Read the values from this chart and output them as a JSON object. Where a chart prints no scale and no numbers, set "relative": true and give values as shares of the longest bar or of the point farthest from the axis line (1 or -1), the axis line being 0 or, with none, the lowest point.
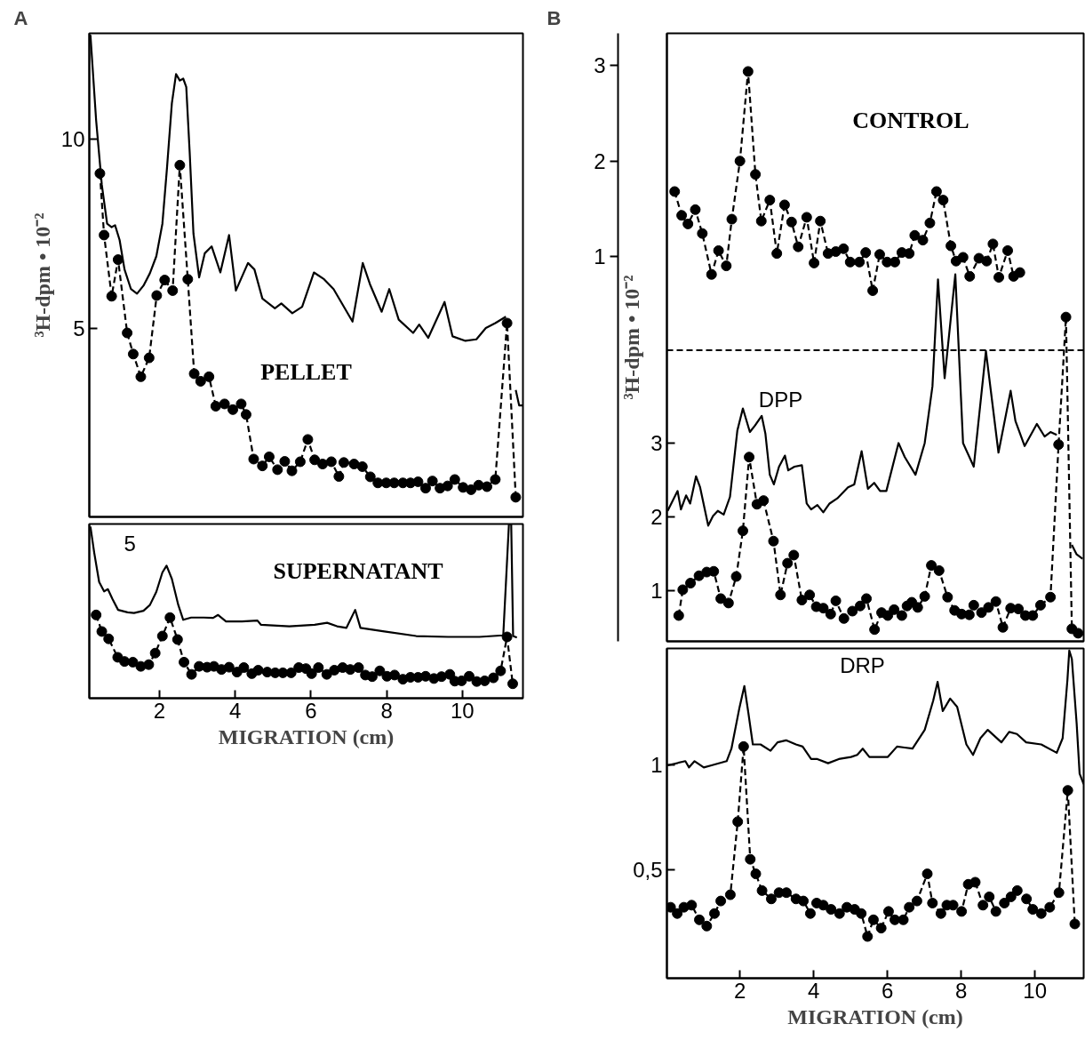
{
  "chart_data": [
    {
      "type": "line",
      "title": "A",
      "ylabel": "³H-dpm • 10⁻²",
      "xlim": [
        0.15,
        11.6
      ],
      "ylim": [
        0,
        12.8
      ],
      "yticks": [
        5,
        10
      ],
      "tick_labels": "y",
      "grid": false,
      "annotations": [
        "PELLET"
      ],
      "series": [
        {
          "line_style": "solid",
          "marker": "none",
          "color": "#000000",
          "x": [
            0.18,
            0.33,
            0.48,
            0.62,
            0.74,
            0.83,
            0.95,
            1.08,
            1.25,
            1.41,
            1.58,
            1.75,
            1.92,
            2.08,
            2.2,
            2.33,
            2.44,
            2.54,
            2.63,
            2.71,
            2.8,
            2.9,
            3.05,
            3.2,
            3.38,
            3.61,
            3.84,
            4.02,
            4.34,
            4.51,
            4.72,
            5.05,
            5.22,
            5.51,
            5.77,
            6.08,
            6.35,
            6.6,
            7.1,
            7.37,
            7.56,
            7.87,
            8.07,
            8.32,
            8.7,
            8.86,
            9.1,
            9.53,
            9.74,
            10.08,
            10.37,
            10.62,
            10.87,
            11.15,
            11.25,
            11.33,
            11.41,
            11.5,
            11.6
          ],
          "values": [
            12.76,
            10.5,
            8.79,
            7.76,
            7.67,
            7.72,
            7.33,
            6.55,
            6.03,
            5.91,
            6.12,
            6.45,
            6.9,
            7.76,
            9.22,
            10.95,
            11.72,
            11.55,
            11.6,
            11.38,
            9.66,
            7.5,
            6.34,
            6.98,
            7.16,
            6.47,
            7.46,
            5.99,
            6.72,
            6.55,
            5.78,
            5.52,
            5.65,
            5.39,
            5.56,
            6.47,
            6.29,
            6.03,
            5.17,
            6.72,
            6.16,
            5.43,
            6.03,
            5.22,
            4.87,
            5.09,
            4.74,
            5.69,
            4.78,
            4.66,
            4.7,
            5.0,
            5.13,
            5.3,
            null,
            null,
            3.36,
            2.95,
            2.95
          ]
        },
        {
          "line_style": "dashed",
          "marker": "circle",
          "color": "#000000",
          "x": [
            0.43,
            0.54,
            0.74,
            0.91,
            1.15,
            1.31,
            1.51,
            1.73,
            1.93,
            2.14,
            2.35,
            2.54,
            2.75,
            2.92,
            3.09,
            3.31,
            3.49,
            3.72,
            3.94,
            4.16,
            4.29,
            4.49,
            4.72,
            4.9,
            5.12,
            5.31,
            5.5,
            5.72,
            5.92,
            6.1,
            6.31,
            6.54,
            6.74,
            6.87,
            7.14,
            7.36,
            7.57,
            7.77,
            7.99,
            8.2,
            8.43,
            8.63,
            8.83,
            9.03,
            9.21,
            9.41,
            9.61,
            9.8,
            10.02,
            10.23,
            10.43,
            10.65,
            10.87,
            11.18,
            11.41
          ],
          "values": [
            9.09,
            7.46,
            5.84,
            6.81,
            4.87,
            4.31,
            3.71,
            4.21,
            5.86,
            6.27,
            5.99,
            9.31,
            6.29,
            3.79,
            3.59,
            3.71,
            2.93,
            2.99,
            2.84,
            2.99,
            2.71,
            1.53,
            1.35,
            1.59,
            1.25,
            1.47,
            1.22,
            1.46,
            2.05,
            1.51,
            1.4,
            1.46,
            1.07,
            1.44,
            1.4,
            1.33,
            1.06,
            0.9,
            0.9,
            0.9,
            0.9,
            0.9,
            0.93,
            0.76,
            0.95,
            0.76,
            0.82,
            0.99,
            0.78,
            0.72,
            0.84,
            0.8,
            0.99,
            5.13,
            0.52
          ]
        }
      ]
    },
    {
      "type": "line",
      "xlabel": "MIGRATION (cm)",
      "xlim": [
        0.15,
        11.6
      ],
      "xticks": [
        2,
        4,
        6,
        8,
        10
      ],
      "relative": true,
      "grid": false,
      "annotations": [
        "SUPERNATANT",
        "5"
      ],
      "series": [
        {
          "line_style": "solid",
          "marker": "none",
          "color": "#000000",
          "x": [
            0.18,
            0.28,
            0.41,
            0.54,
            0.64,
            0.76,
            0.91,
            1.16,
            1.33,
            1.58,
            1.75,
            1.92,
            2.08,
            2.19,
            2.33,
            2.5,
            2.63,
            2.84,
            3.17,
            3.42,
            3.55,
            3.76,
            4.18,
            4.59,
            4.68,
            5.43,
            6.1,
            6.43,
            6.69,
            6.94,
            7.17,
            7.31,
            7.94,
            8.78,
            9.62,
            10.45,
            11.08,
            11.23,
            11.29,
            11.34,
            11.44
          ],
          "values": [
            0.985,
            0.835,
            0.667,
            0.613,
            0.626,
            0.57,
            0.507,
            0.493,
            0.489,
            0.502,
            0.535,
            0.611,
            0.722,
            0.761,
            0.685,
            0.535,
            0.45,
            0.463,
            0.463,
            0.461,
            0.478,
            0.441,
            0.441,
            0.446,
            0.422,
            0.413,
            0.422,
            0.433,
            0.413,
            0.404,
            0.507,
            0.404,
            0.383,
            0.357,
            0.352,
            0.352,
            0.361,
            1,
            1,
            0.357,
            0.348
          ]
        },
        {
          "line_style": "dashed",
          "marker": "circle",
          "color": "#000000",
          "x": [
            0.33,
            0.48,
            0.66,
            0.9,
            1.08,
            1.3,
            1.51,
            1.72,
            1.89,
            2.08,
            2.28,
            2.48,
            2.65,
            2.85,
            3.05,
            3.26,
            3.44,
            3.64,
            3.84,
            4.05,
            4.23,
            4.44,
            4.61,
            4.85,
            5.06,
            5.26,
            5.48,
            5.68,
            5.87,
            6.02,
            6.2,
            6.42,
            6.62,
            6.84,
            7.04,
            7.26,
            7.44,
            7.62,
            7.82,
            8.01,
            8.21,
            8.43,
            8.63,
            8.83,
            9.03,
            9.25,
            9.45,
            9.67,
            9.8,
            9.98,
            10.18,
            10.38,
            10.59,
            10.82,
            11.01,
            11.18,
            11.33
          ],
          "values": [
            0.478,
            0.383,
            0.341,
            0.235,
            0.211,
            0.207,
            0.183,
            0.193,
            0.259,
            0.357,
            0.463,
            0.337,
            0.207,
            0.137,
            0.183,
            0.178,
            0.183,
            0.165,
            0.178,
            0.15,
            0.176,
            0.141,
            0.161,
            0.15,
            0.146,
            0.146,
            0.146,
            0.176,
            0.17,
            0.141,
            0.176,
            0.137,
            0.161,
            0.176,
            0.165,
            0.176,
            0.133,
            0.124,
            0.157,
            0.126,
            0.133,
            0.109,
            0.12,
            0.12,
            0.126,
            0.113,
            0.124,
            0.137,
            0.098,
            0.1,
            0.126,
            0.096,
            0.1,
            0.117,
            0.157,
            0.352,
            0.083
          ]
        }
      ]
    },
    {
      "type": "line",
      "title": "B",
      "ylabel": "³H-dpm • 10⁻²",
      "xlim": [
        0.02,
        11.32
      ],
      "ylim": [
        0.31,
        8.56
      ],
      "yticks": [
        1,
        2,
        3
      ],
      "y2lim": [
        -3.04,
        3.34
      ],
      "y2ticks": [
        1,
        2,
        3
      ],
      "tick_labels": "y",
      "grid": false,
      "ref_lines": [
        {
          "axis": "y",
          "value": 4.26,
          "line_style": "dashed",
          "color": "#000000"
        }
      ],
      "annotations": [
        "CONTROL",
        "DPP"
      ],
      "series": [
        {
          "axis": "y2",
          "line_style": "dashed",
          "marker": "circle",
          "color": "#000000",
          "x": [
            0.23,
            0.42,
            0.59,
            0.79,
            0.98,
            1.23,
            1.42,
            1.63,
            1.78,
            2.0,
            2.22,
            2.42,
            2.58,
            2.81,
            3.0,
            3.21,
            3.4,
            3.58,
            3.81,
            4.01,
            4.18,
            4.39,
            4.6,
            4.81,
            4.99,
            5.24,
            5.41,
            5.6,
            5.79,
            5.99,
            6.2,
            6.39,
            6.59,
            6.74,
            6.96,
            7.15,
            7.33,
            7.51,
            7.72,
            7.86,
            8.05,
            8.23,
            8.48,
            8.69,
            8.86,
            9.02,
            9.26,
            9.42,
            9.59
          ],
          "values": [
            1.68,
            1.43,
            1.34,
            1.49,
            1.24,
            0.81,
            1.06,
            0.9,
            1.39,
            2.0,
            2.94,
            1.86,
            1.37,
            1.59,
            1.03,
            1.54,
            1.36,
            1.1,
            1.41,
            0.93,
            1.37,
            1.03,
            1.05,
            1.08,
            0.94,
            0.94,
            1.04,
            0.64,
            1.02,
            0.94,
            0.94,
            1.04,
            1.03,
            1.22,
            1.17,
            1.35,
            1.68,
            1.59,
            1.11,
            0.95,
            0.99,
            0.79,
            0.98,
            0.95,
            1.13,
            0.78,
            1.06,
            0.79,
            0.83
          ]
        },
        {
          "line_style": "solid",
          "marker": "none",
          "color": "#000000",
          "x": [
            0.04,
            0.31,
            0.4,
            0.54,
            0.65,
            0.81,
            0.92,
            1.14,
            1.27,
            1.4,
            1.56,
            1.73,
            1.93,
            2.08,
            2.27,
            2.41,
            2.59,
            2.69,
            2.81,
            2.92,
            3.06,
            3.22,
            3.31,
            3.48,
            3.68,
            3.81,
            3.93,
            4.1,
            4.26,
            4.43,
            4.64,
            4.93,
            5.1,
            5.3,
            5.47,
            5.64,
            5.8,
            5.97,
            6.3,
            6.47,
            6.76,
            7.01,
            7.22,
            7.37,
            7.55,
            7.84,
            8.05,
            8.34,
            8.67,
            9.01,
            9.34,
            9.47,
            9.72,
            10.05,
            10.26,
            10.42,
            10.59,
            10.71,
            10.84,
            11.0,
            11.13,
            11.29
          ],
          "values": [
            2.08,
            2.35,
            2.1,
            2.29,
            2.18,
            2.55,
            2.4,
            1.88,
            2.01,
            2.08,
            2.03,
            2.27,
            3.17,
            3.47,
            3.15,
            3.24,
            3.37,
            3.13,
            2.57,
            2.44,
            2.68,
            2.83,
            2.63,
            2.68,
            2.7,
            2.18,
            2.1,
            2.16,
            2.06,
            2.18,
            2.25,
            2.4,
            2.44,
            2.89,
            2.38,
            2.46,
            2.35,
            2.35,
            3.0,
            2.81,
            2.57,
            3.0,
            3.77,
            5.22,
            3.88,
            5.29,
            3.0,
            2.68,
            4.25,
            2.87,
            3.71,
            3.3,
            2.96,
            3.26,
            3.09,
            3.15,
            3.11,
            null,
            null,
            1.62,
            1.49,
            1.43
          ]
        },
        {
          "line_style": "dashed",
          "marker": "circle",
          "color": "#000000",
          "x": [
            0.34,
            0.45,
            0.66,
            0.89,
            1.1,
            1.29,
            1.48,
            1.69,
            1.9,
            2.08,
            2.25,
            2.46,
            2.64,
            2.91,
            3.1,
            3.29,
            3.46,
            3.68,
            3.89,
            4.07,
            4.26,
            4.46,
            4.6,
            4.82,
            5.05,
            5.26,
            5.43,
            5.65,
            5.84,
            6.01,
            6.18,
            6.39,
            6.53,
            6.66,
            6.82,
            7.01,
            7.19,
            7.4,
            7.63,
            7.82,
            8.01,
            8.22,
            8.34,
            8.55,
            8.74,
            8.94,
            9.13,
            9.34,
            9.55,
            9.74,
            9.94,
            10.15,
            10.42,
            10.64,
            10.84,
            11.0,
            11.17
          ],
          "values": [
            0.66,
            1.01,
            1.1,
            1.2,
            1.25,
            1.26,
            0.89,
            0.83,
            1.19,
            1.81,
            2.81,
            2.17,
            2.22,
            1.67,
            0.94,
            1.37,
            1.48,
            0.87,
            0.94,
            0.78,
            0.76,
            0.68,
            0.86,
            0.62,
            0.72,
            0.79,
            0.89,
            0.47,
            0.7,
            0.66,
            0.74,
            0.66,
            0.79,
            0.84,
            0.77,
            0.92,
            1.34,
            1.27,
            0.91,
            0.73,
            0.68,
            0.67,
            0.8,
            0.7,
            0.77,
            0.85,
            0.5,
            0.76,
            0.75,
            0.66,
            0.66,
            0.8,
            0.91,
            2.98,
            4.71,
            0.48,
            0.42
          ]
        }
      ]
    },
    {
      "type": "line",
      "xlabel": "MIGRATION (cm)",
      "xlim": [
        0.02,
        11.32
      ],
      "xticks": [
        2,
        4,
        6,
        8,
        10
      ],
      "ylim": [
        -0.02,
        1.56
      ],
      "yticks": [
        {
          "value": 0.5,
          "label": "0,5"
        },
        1
      ],
      "grid": false,
      "annotations": [
        "DRP"
      ],
      "series": [
        {
          "line_style": "solid",
          "marker": "none",
          "color": "#000000",
          "x": [
            0.04,
            0.52,
            0.62,
            0.77,
            1.02,
            1.23,
            1.64,
            1.77,
            1.98,
            2.12,
            2.23,
            2.35,
            2.56,
            2.83,
            3.02,
            3.25,
            3.52,
            3.7,
            3.93,
            4.1,
            4.39,
            4.68,
            5.01,
            5.18,
            5.33,
            5.51,
            6.01,
            6.26,
            6.68,
            7.01,
            7.24,
            7.36,
            7.5,
            7.7,
            7.89,
            8.14,
            8.32,
            8.52,
            8.72,
            9.09,
            9.3,
            9.51,
            9.76,
            10.17,
            10.59,
            10.75,
            10.88,
            10.93,
            11.0,
            11.13,
            11.21,
            11.32
          ],
          "values": [
            1.0,
            1.02,
            0.99,
            1.02,
            0.99,
            1.0,
            1.02,
            1.08,
            1.27,
            1.38,
            1.25,
            1.1,
            1.1,
            1.07,
            1.11,
            1.12,
            1.1,
            1.09,
            1.03,
            1.03,
            1.01,
            1.03,
            1.04,
            1.05,
            1.08,
            1.04,
            1.04,
            1.09,
            1.08,
            1.17,
            1.31,
            1.4,
            1.26,
            1.32,
            1.28,
            1.1,
            1.05,
            1.13,
            1.17,
            1.11,
            1.16,
            1.15,
            1.11,
            1.1,
            1.06,
            1.13,
            1.41,
            1.55,
            1.51,
            1.2,
            0.96,
            0.91
          ]
        },
        {
          "line_style": "dashed",
          "marker": "circle",
          "color": "#000000",
          "x": [
            0.12,
            0.3,
            0.48,
            0.69,
            0.9,
            1.1,
            1.31,
            1.48,
            1.74,
            1.94,
            2.1,
            2.28,
            2.43,
            2.6,
            2.85,
            3.06,
            3.26,
            3.52,
            3.72,
            3.91,
            4.08,
            4.26,
            4.47,
            4.7,
            4.9,
            5.11,
            5.29,
            5.46,
            5.62,
            5.83,
            6.03,
            6.2,
            6.43,
            6.59,
            6.8,
            7.08,
            7.22,
            7.45,
            7.61,
            7.78,
            8.01,
            8.19,
            8.38,
            8.59,
            8.76,
            8.94,
            9.17,
            9.35,
            9.52,
            9.77,
            9.94,
            10.17,
            10.4,
            10.65,
            10.89,
            11.08
          ],
          "values": [
            0.32,
            0.29,
            0.32,
            0.33,
            0.26,
            0.23,
            0.29,
            0.35,
            0.38,
            0.73,
            1.09,
            0.55,
            0.48,
            0.4,
            0.36,
            0.39,
            0.39,
            0.36,
            0.35,
            0.29,
            0.34,
            0.33,
            0.31,
            0.29,
            0.32,
            0.31,
            0.29,
            0.18,
            0.26,
            0.22,
            0.3,
            0.26,
            0.26,
            0.32,
            0.35,
            0.48,
            0.34,
            0.29,
            0.33,
            0.33,
            0.3,
            0.43,
            0.44,
            0.33,
            0.37,
            0.3,
            0.34,
            0.37,
            0.4,
            0.36,
            0.31,
            0.29,
            0.32,
            0.39,
            0.88,
            0.24
          ]
        }
      ]
    }
  ]
}
